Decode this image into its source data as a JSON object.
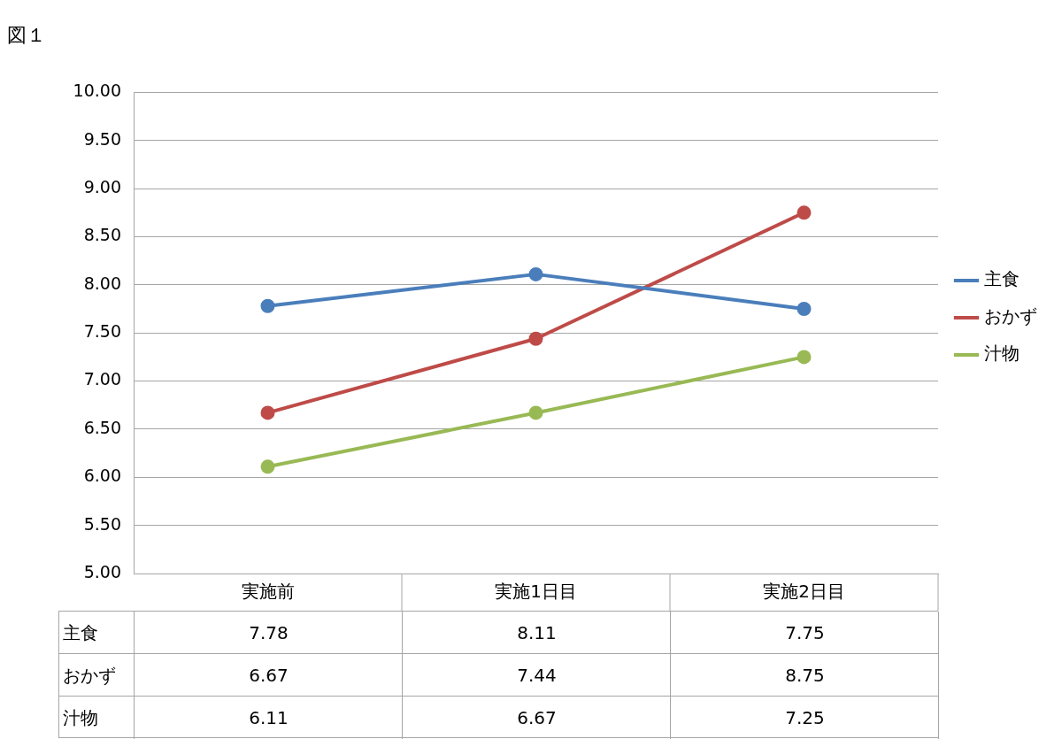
{
  "chart_data": {
    "type": "line",
    "title": "図１",
    "categories": [
      "実施前",
      "実施1日目",
      "実施2日目"
    ],
    "series": [
      {
        "name": "主食",
        "color": "#4a7ebb",
        "values": [
          7.78,
          8.11,
          7.75
        ]
      },
      {
        "name": "おかず",
        "color": "#be4b48",
        "values": [
          6.67,
          7.44,
          8.75
        ]
      },
      {
        "name": "汁物",
        "color": "#98b954",
        "values": [
          6.11,
          6.67,
          7.25
        ]
      }
    ],
    "ylim": [
      5,
      10
    ],
    "yticks": [
      {
        "value": 5,
        "label": "5.00"
      },
      {
        "value": 5.5,
        "label": "5.50"
      },
      {
        "value": 6,
        "label": "6.00"
      },
      {
        "value": 6.5,
        "label": "6.50"
      },
      {
        "value": 7,
        "label": "7.00"
      },
      {
        "value": 7.5,
        "label": "7.50"
      },
      {
        "value": 8,
        "label": "8.00"
      },
      {
        "value": 8.5,
        "label": "8.50"
      },
      {
        "value": 9,
        "label": "9.00"
      },
      {
        "value": 9.5,
        "label": "9.50"
      },
      {
        "value": 10,
        "label": "10.00"
      }
    ],
    "grid": "y",
    "legend": "right",
    "marker": "circle",
    "line_style": "solid",
    "data_labels": true
  }
}
